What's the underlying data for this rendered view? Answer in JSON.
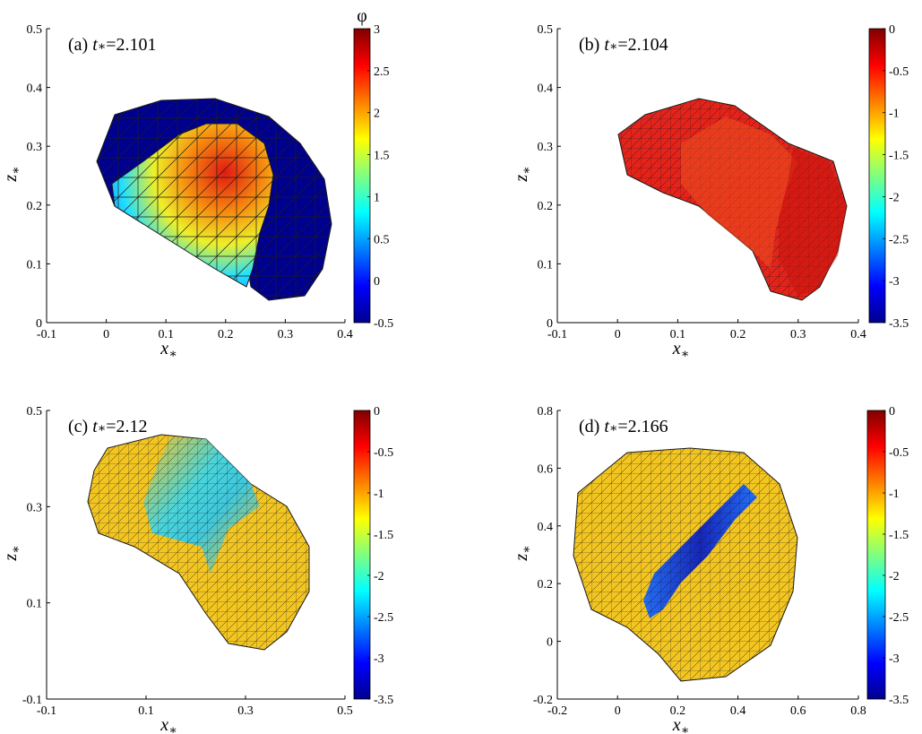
{
  "figure": {
    "colorbar_title": "φ",
    "colors": {
      "deep_blue": "#00008f",
      "blue": "#0044ff",
      "cyan": "#22e0ff",
      "yellow": "#f2c521",
      "orange": "#f78a0f",
      "red": "#e6231a",
      "dark_red": "#820000",
      "mesh_edge": "#1a1a1a"
    },
    "panels": [
      {
        "id": "a",
        "label": "(a)",
        "time_symbol": "t",
        "time_subscript": "∗",
        "time_value": "=2.101",
        "xlabel": "x",
        "xlabel_sub": "∗",
        "ylabel": "z",
        "ylabel_sub": "∗",
        "xlim": [
          -0.1,
          0.4
        ],
        "ylim": [
          0,
          0.5
        ],
        "xticks": [
          "-0.1",
          "0",
          "0.1",
          "0.2",
          "0.3",
          "0.4"
        ],
        "yticks": [
          "0",
          "0.1",
          "0.2",
          "0.3",
          "0.4",
          "0.5"
        ],
        "clim": [
          -0.5,
          3
        ],
        "cticks": [
          "3",
          "2.5",
          "2",
          "1.5",
          "1",
          "0.5",
          "0",
          "-0.5"
        ]
      },
      {
        "id": "b",
        "label": "(b)",
        "time_symbol": "t",
        "time_subscript": "∗",
        "time_value": "=2.104",
        "xlabel": "x",
        "xlabel_sub": "∗",
        "ylabel": "z",
        "ylabel_sub": "∗",
        "xlim": [
          -0.1,
          0.4
        ],
        "ylim": [
          0,
          0.5
        ],
        "xticks": [
          "-0.1",
          "0",
          "0.1",
          "0.2",
          "0.3",
          "0.4"
        ],
        "yticks": [
          "0",
          "0.1",
          "0.2",
          "0.3",
          "0.4",
          "0.5"
        ],
        "clim": [
          -3.5,
          0
        ],
        "cticks": [
          "0",
          "-0.5",
          "-1",
          "-1.5",
          "-2",
          "-2.5",
          "-3",
          "-3.5"
        ]
      },
      {
        "id": "c",
        "label": "(c)",
        "time_symbol": "t",
        "time_subscript": "∗",
        "time_value": "=2.12",
        "xlabel": "x",
        "xlabel_sub": "∗",
        "ylabel": "z",
        "ylabel_sub": "∗",
        "xlim": [
          -0.1,
          0.5
        ],
        "ylim": [
          -0.1,
          0.5
        ],
        "xticks": [
          "-0.1",
          "0.1",
          "0.3",
          "0.5"
        ],
        "yticks": [
          "-0.1",
          "0.1",
          "0.3",
          "0.5"
        ],
        "clim": [
          -3.5,
          0
        ],
        "cticks": [
          "0",
          "-0.5",
          "-1",
          "-1.5",
          "-2",
          "-2.5",
          "-3",
          "-3.5"
        ]
      },
      {
        "id": "d",
        "label": "(d)",
        "time_symbol": "t",
        "time_subscript": "∗",
        "time_value": "=2.166",
        "xlabel": "x",
        "xlabel_sub": "∗",
        "ylabel": "z",
        "ylabel_sub": "∗",
        "xlim": [
          -0.2,
          0.8
        ],
        "ylim": [
          -0.2,
          0.8
        ],
        "xticks": [
          "-0.2",
          "0",
          "0.2",
          "0.4",
          "0.6",
          "0.8"
        ],
        "yticks": [
          "-0.2",
          "0",
          "0.2",
          "0.4",
          "0.6",
          "0.8"
        ],
        "clim": [
          -3.5,
          0
        ],
        "cticks": [
          "0",
          "-0.5",
          "-1",
          "-1.5",
          "-2",
          "-2.5",
          "-3",
          "-3.5"
        ]
      }
    ]
  }
}
